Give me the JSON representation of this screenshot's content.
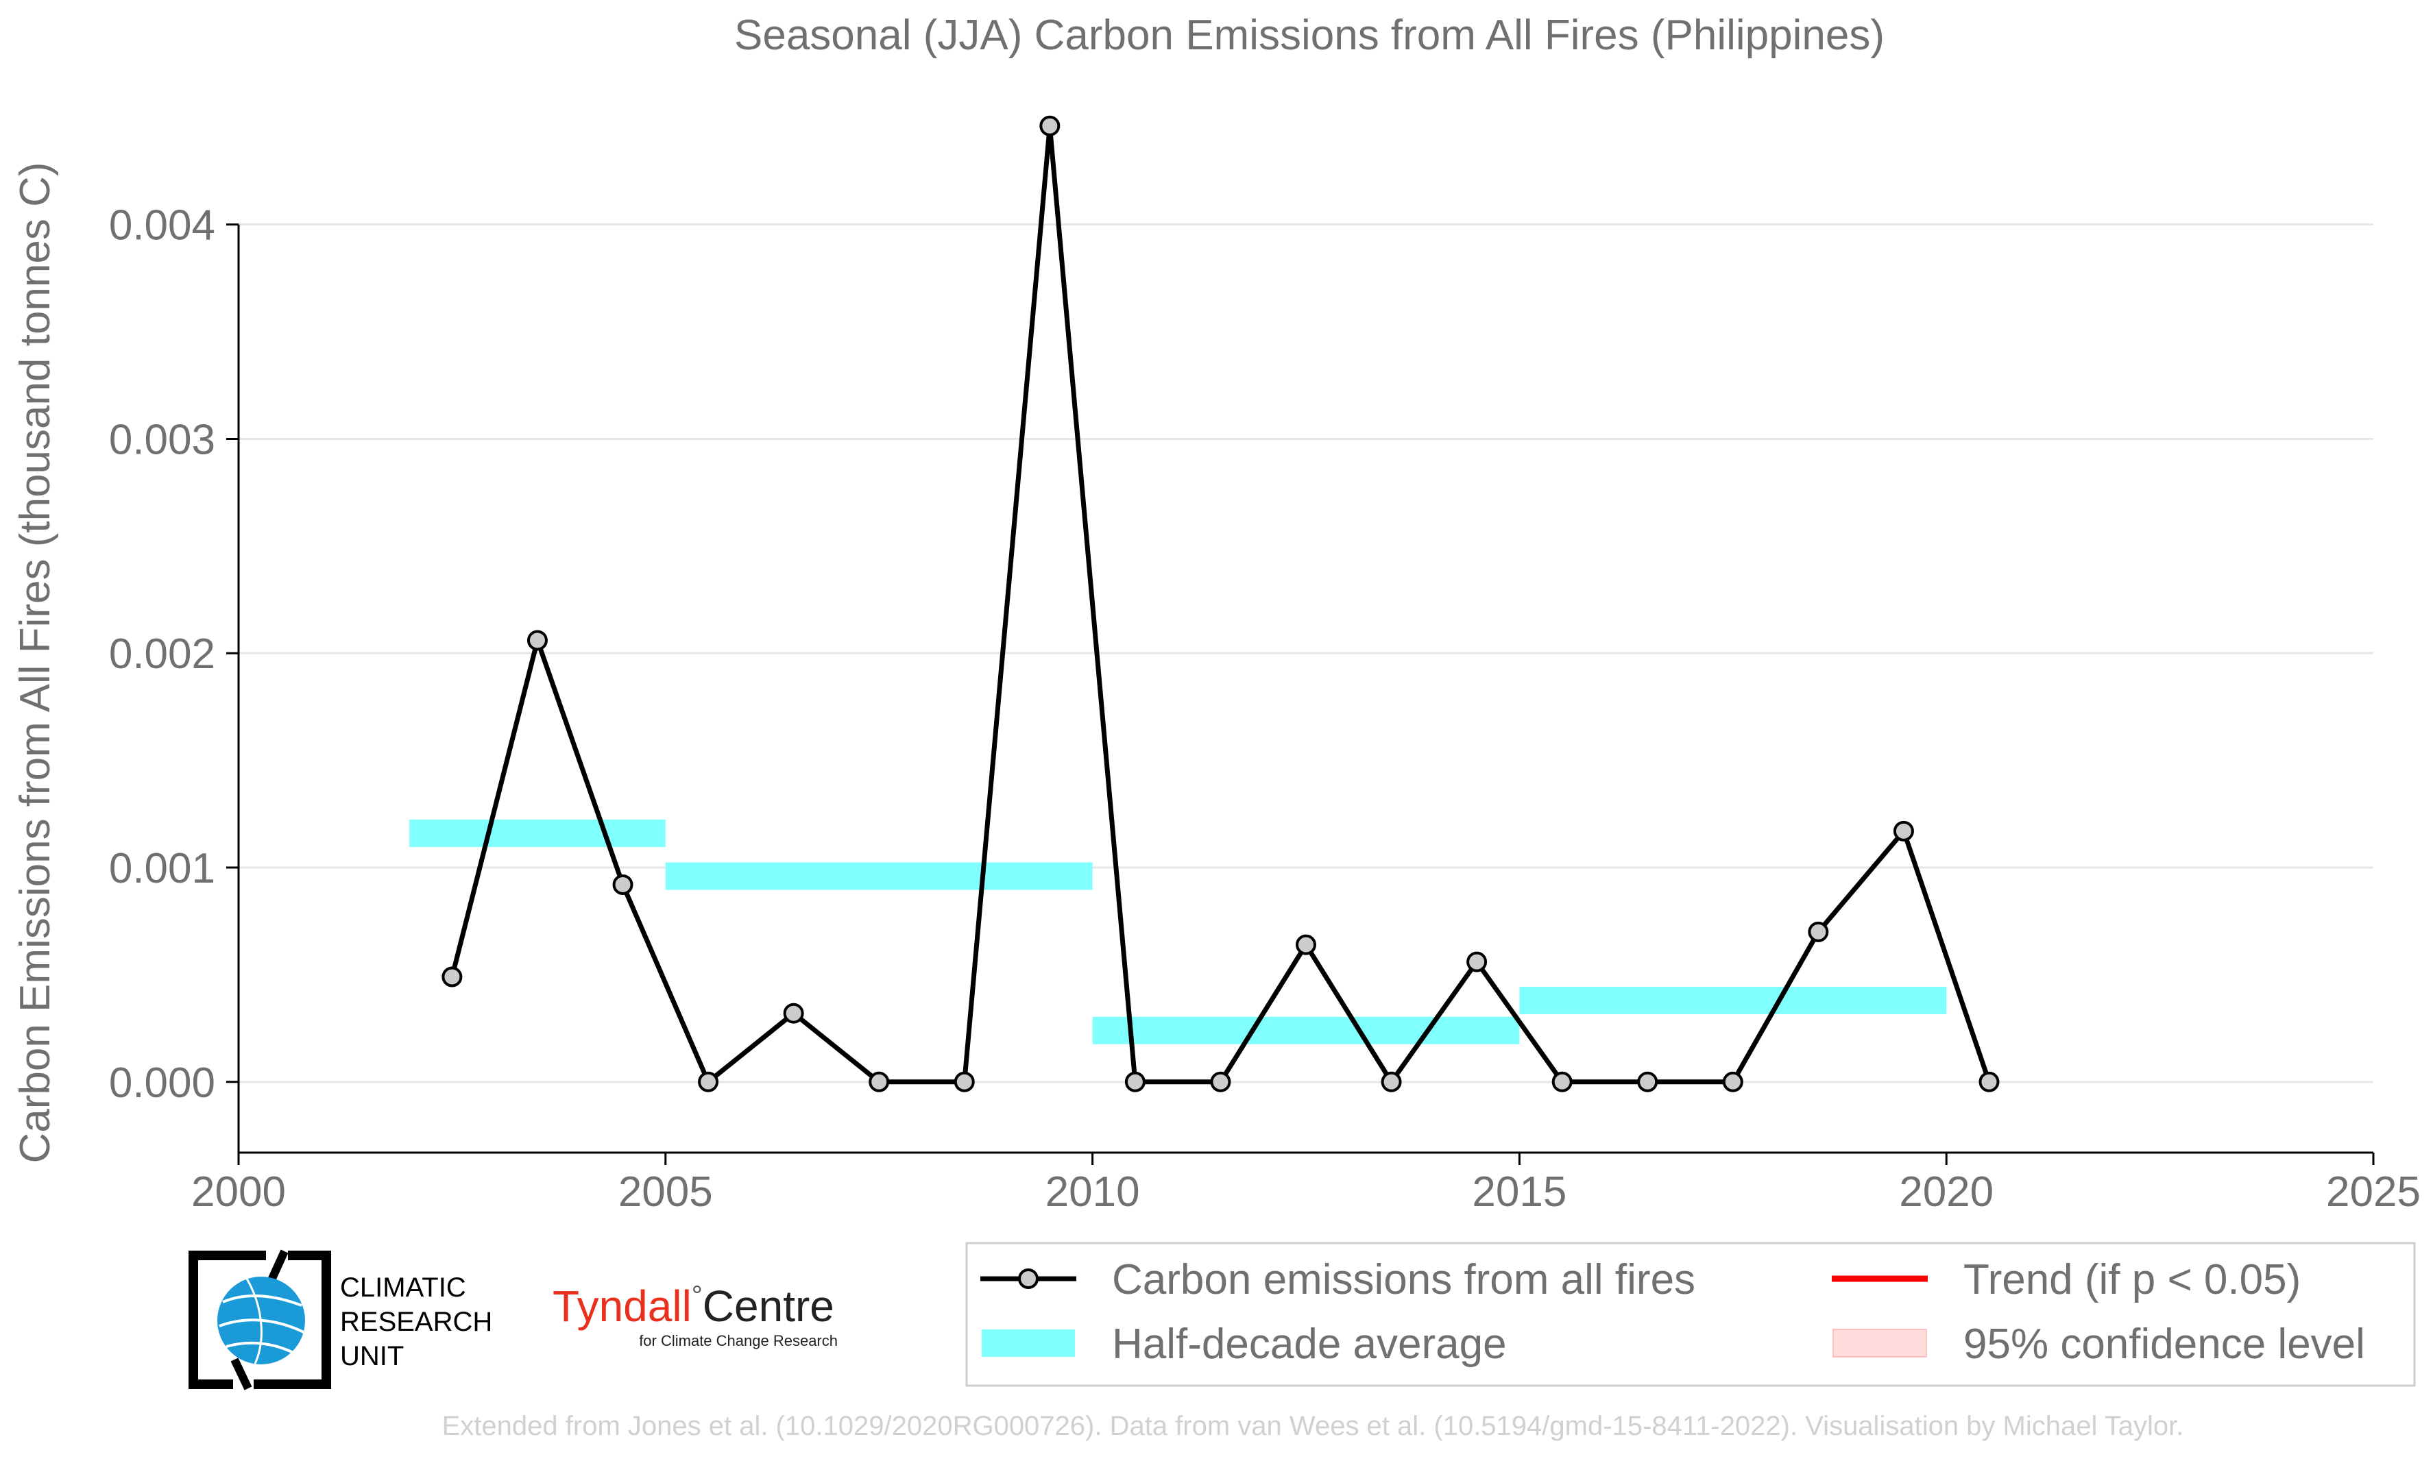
{
  "chart_data": {
    "type": "line",
    "title": "Seasonal (JJA) Carbon Emissions from All Fires (Philippines)",
    "xlabel": "",
    "ylabel": "Carbon Emissions from All Fires (thousand tonnes C)",
    "xlim": [
      2000,
      2025
    ],
    "ylim": [
      -0.00033,
      0.0046
    ],
    "xticks": [
      2000,
      2005,
      2010,
      2015,
      2020,
      2025
    ],
    "xtick_labels": [
      "2000",
      "2005",
      "2010",
      "2015",
      "2020",
      "2025"
    ],
    "yticks": [
      0.0,
      0.001,
      0.002,
      0.003,
      0.004
    ],
    "ytick_labels": [
      "0.000",
      "0.001",
      "0.002",
      "0.003",
      "0.004"
    ],
    "grid": "horizontal",
    "series": [
      {
        "name": "Carbon emissions from all fires",
        "color": "#000000",
        "marker_fill": "#cccccc",
        "x": [
          2002.5,
          2003.5,
          2004.5,
          2005.5,
          2006.5,
          2007.5,
          2008.5,
          2009.5,
          2010.5,
          2011.5,
          2012.5,
          2013.5,
          2014.5,
          2015.5,
          2016.5,
          2017.5,
          2018.5,
          2019.5,
          2020.5
        ],
        "values": [
          0.00049,
          0.00206,
          0.00092,
          0.0,
          0.00032,
          0.0,
          0.0,
          0.00446,
          0.0,
          0.0,
          0.00064,
          0.0,
          0.00056,
          0.0,
          0.0,
          0.0,
          0.0007,
          0.00117,
          0.0
        ]
      }
    ],
    "half_decade_average": {
      "name": "Half-decade average",
      "color": "#80ffff",
      "segments": [
        {
          "x0": 2002,
          "x1": 2005,
          "value": 0.00116
        },
        {
          "x0": 2005,
          "x1": 2010,
          "value": 0.00096
        },
        {
          "x0": 2010,
          "x1": 2015,
          "value": 0.00024
        },
        {
          "x0": 2015,
          "x1": 2020,
          "value": 0.00038
        }
      ]
    },
    "legend": {
      "placement": "bottom-right",
      "entries": [
        {
          "label": "Carbon emissions from all fires",
          "kind": "line-marker",
          "color": "#000000"
        },
        {
          "label": "Trend (if p < 0.05)",
          "kind": "line",
          "color": "#ff0000"
        },
        {
          "label": "Half-decade average",
          "kind": "patch",
          "color": "#80ffff"
        },
        {
          "label": "95% confidence level",
          "kind": "patch",
          "color": "#ffdddd"
        }
      ]
    },
    "credit": "Extended from Jones et al. (10.1029/2020RG000726). Data from van Wees et al. (10.5194/gmd-15-8411-2022). Visualisation by Michael Taylor."
  },
  "logos": {
    "cru": {
      "lines": [
        "CLIMATIC",
        "RESEARCH",
        "UNIT"
      ],
      "icon": "globe-icon",
      "color": "#1a9bd7"
    },
    "tyndall": {
      "name": "Tyndall",
      "degree": "°",
      "centre": "Centre",
      "subtitle": "for Climate Change Research",
      "color": "#e8301c"
    }
  },
  "colors": {
    "text": "#707070",
    "axis": "#000000",
    "grid": "#e6e6e6",
    "credit": "#d0d0d0"
  }
}
